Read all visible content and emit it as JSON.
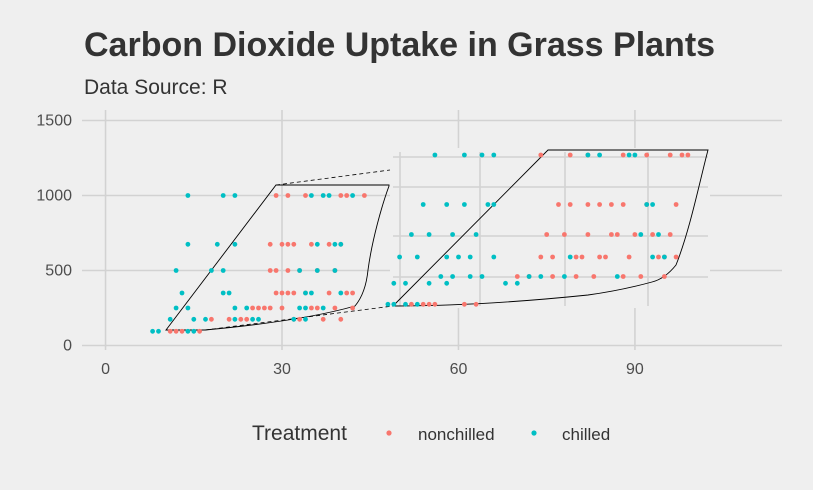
{
  "chart_data": {
    "type": "scatter",
    "title": "Carbon Dioxide Uptake in Grass Plants",
    "subtitle": "Data Source: R",
    "xlabel": "",
    "ylabel": "",
    "xlim": [
      -4,
      115
    ],
    "ylim": [
      -30,
      1570
    ],
    "x_ticks": [
      "0",
      "30",
      "60",
      "90"
    ],
    "y_ticks": [
      "0",
      "500",
      "1000",
      "1500"
    ],
    "grid": true,
    "legend": {
      "title": "Treatment",
      "position": "bottom"
    },
    "series": [
      {
        "name": "nonchilled",
        "color": "#f8766d",
        "points": [
          [
            11,
            95
          ],
          [
            12,
            95
          ],
          [
            13,
            95
          ],
          [
            16,
            95
          ],
          [
            18,
            175
          ],
          [
            21,
            175
          ],
          [
            23,
            175
          ],
          [
            24,
            175
          ],
          [
            25,
            250
          ],
          [
            26,
            250
          ],
          [
            27,
            250
          ],
          [
            28,
            250
          ],
          [
            29,
            350
          ],
          [
            30,
            350
          ],
          [
            31,
            350
          ],
          [
            32,
            350
          ],
          [
            28,
            500
          ],
          [
            29,
            500
          ],
          [
            31,
            500
          ],
          [
            33,
            500
          ],
          [
            28,
            675
          ],
          [
            30,
            675
          ],
          [
            31,
            675
          ],
          [
            32,
            675
          ],
          [
            29,
            1000
          ],
          [
            34,
            1000
          ],
          [
            40,
            1000
          ],
          [
            41,
            1000
          ],
          [
            35,
            250
          ],
          [
            38,
            350
          ],
          [
            39,
            500
          ],
          [
            40,
            675
          ],
          [
            41,
            350
          ],
          [
            37,
            175
          ],
          [
            36,
            250
          ],
          [
            42,
            250
          ],
          [
            33,
            175
          ],
          [
            34,
            350
          ],
          [
            38,
            675
          ],
          [
            36,
            500
          ],
          [
            30,
            250
          ],
          [
            32,
            175
          ],
          [
            40,
            175
          ],
          [
            42,
            350
          ],
          [
            44,
            1000
          ],
          [
            31,
            1000
          ],
          [
            39,
            250
          ],
          [
            35,
            675
          ],
          [
            52,
            275
          ],
          [
            54,
            275
          ],
          [
            55,
            275
          ],
          [
            56,
            275
          ],
          [
            70,
            460
          ],
          [
            72,
            460
          ],
          [
            76,
            460
          ],
          [
            80,
            460
          ],
          [
            74,
            590
          ],
          [
            76,
            590
          ],
          [
            80,
            590
          ],
          [
            84,
            590
          ],
          [
            75,
            740
          ],
          [
            78,
            740
          ],
          [
            82,
            740
          ],
          [
            87,
            740
          ],
          [
            77,
            940
          ],
          [
            79,
            940
          ],
          [
            82,
            940
          ],
          [
            86,
            940
          ],
          [
            74,
            1270
          ],
          [
            82,
            1270
          ],
          [
            88,
            1270
          ],
          [
            96,
            1270
          ],
          [
            85,
            590
          ],
          [
            88,
            460
          ],
          [
            90,
            740
          ],
          [
            92,
            940
          ],
          [
            94,
            590
          ],
          [
            95,
            460
          ],
          [
            96,
            740
          ],
          [
            97,
            940
          ],
          [
            92,
            1270
          ],
          [
            98,
            1270
          ],
          [
            99,
            1270
          ],
          [
            89,
            590
          ],
          [
            83,
            460
          ],
          [
            86,
            740
          ],
          [
            91,
            460
          ],
          [
            93,
            740
          ],
          [
            95,
            590
          ],
          [
            88,
            940
          ],
          [
            97,
            590
          ],
          [
            84,
            940
          ],
          [
            61,
            275
          ],
          [
            63,
            275
          ],
          [
            79,
            1270
          ],
          [
            81,
            590
          ]
        ]
      },
      {
        "name": "chilled",
        "color": "#00bfc4",
        "points": [
          [
            8,
            95
          ],
          [
            9,
            95
          ],
          [
            14,
            95
          ],
          [
            15,
            95
          ],
          [
            11,
            175
          ],
          [
            15,
            175
          ],
          [
            17,
            175
          ],
          [
            22,
            175
          ],
          [
            12,
            250
          ],
          [
            14,
            250
          ],
          [
            22,
            250
          ],
          [
            24,
            250
          ],
          [
            13,
            350
          ],
          [
            20,
            350
          ],
          [
            21,
            350
          ],
          [
            34,
            350
          ],
          [
            12,
            500
          ],
          [
            18,
            500
          ],
          [
            20,
            500
          ],
          [
            39,
            500
          ],
          [
            14,
            675
          ],
          [
            19,
            675
          ],
          [
            22,
            675
          ],
          [
            40,
            675
          ],
          [
            14,
            1000
          ],
          [
            20,
            1000
          ],
          [
            22,
            1000
          ],
          [
            38,
            1000
          ],
          [
            25,
            175
          ],
          [
            26,
            175
          ],
          [
            33,
            250
          ],
          [
            34,
            250
          ],
          [
            35,
            350
          ],
          [
            36,
            675
          ],
          [
            39,
            675
          ],
          [
            42,
            1000
          ],
          [
            35,
            1000
          ],
          [
            37,
            1000
          ],
          [
            40,
            350
          ],
          [
            33,
            500
          ],
          [
            32,
            175
          ],
          [
            34,
            175
          ],
          [
            37,
            250
          ],
          [
            36,
            500
          ],
          [
            48,
            275
          ],
          [
            49,
            275
          ],
          [
            51,
            275
          ],
          [
            53,
            275
          ],
          [
            49,
            415
          ],
          [
            51,
            415
          ],
          [
            55,
            415
          ],
          [
            58,
            415
          ],
          [
            50,
            590
          ],
          [
            53,
            590
          ],
          [
            58,
            590
          ],
          [
            62,
            590
          ],
          [
            52,
            740
          ],
          [
            55,
            740
          ],
          [
            59,
            740
          ],
          [
            63,
            740
          ],
          [
            54,
            940
          ],
          [
            58,
            940
          ],
          [
            61,
            940
          ],
          [
            65,
            940
          ],
          [
            56,
            1270
          ],
          [
            61,
            1270
          ],
          [
            64,
            1270
          ],
          [
            66,
            1270
          ],
          [
            57,
            460
          ],
          [
            59,
            460
          ],
          [
            62,
            460
          ],
          [
            64,
            460
          ],
          [
            60,
            590
          ],
          [
            66,
            590
          ],
          [
            72,
            460
          ],
          [
            78,
            460
          ],
          [
            66,
            940
          ],
          [
            87,
            460
          ],
          [
            93,
            590
          ],
          [
            94,
            740
          ],
          [
            82,
            1270
          ],
          [
            84,
            1270
          ],
          [
            89,
            1270
          ],
          [
            90,
            1270
          ],
          [
            91,
            740
          ],
          [
            92,
            940
          ],
          [
            93,
            940
          ],
          [
            95,
            590
          ],
          [
            68,
            415
          ],
          [
            70,
            415
          ],
          [
            74,
            460
          ],
          [
            79,
            590
          ]
        ]
      }
    ]
  }
}
